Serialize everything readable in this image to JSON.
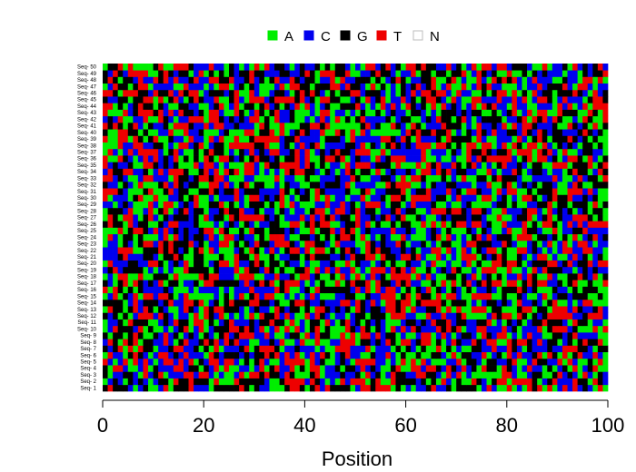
{
  "chart_data": {
    "type": "heatmap",
    "title": "",
    "xlabel": "Position",
    "ylabel": "",
    "xlim": [
      0,
      100
    ],
    "x_ticks": [
      "0",
      "20",
      "40",
      "60",
      "80",
      "100"
    ],
    "x_tick_values": [
      0,
      20,
      40,
      60,
      80,
      100
    ],
    "positions": 100,
    "sequences": [
      "Seq- 1",
      "Seq- 2",
      "Seq- 3",
      "Seq- 4",
      "Seq- 5",
      "Seq- 6",
      "Seq- 7",
      "Seq- 8",
      "Seq- 9",
      "Seq- 10",
      "Seq- 11",
      "Seq- 12",
      "Seq- 13",
      "Seq- 14",
      "Seq- 15",
      "Seq- 16",
      "Seq- 17",
      "Seq- 18",
      "Seq- 19",
      "Seq- 20",
      "Seq- 21",
      "Seq- 22",
      "Seq- 23",
      "Seq- 24",
      "Seq- 25",
      "Seq- 26",
      "Seq- 27",
      "Seq- 28",
      "Seq- 29",
      "Seq- 30",
      "Seq- 31",
      "Seq- 32",
      "Seq- 33",
      "Seq- 34",
      "Seq- 35",
      "Seq- 36",
      "Seq- 37",
      "Seq- 38",
      "Seq- 39",
      "Seq- 40",
      "Seq- 41",
      "Seq- 42",
      "Seq- 43",
      "Seq- 44",
      "Seq- 45",
      "Seq- 46",
      "Seq- 47",
      "Seq- 48",
      "Seq- 49",
      "Seq- 50"
    ],
    "legend": {
      "placement": "top-center",
      "entries": [
        {
          "label": "A",
          "color": "#00ee00"
        },
        {
          "label": "C",
          "color": "#0000ee"
        },
        {
          "label": "G",
          "color": "#000000"
        },
        {
          "label": "T",
          "color": "#ee0000"
        },
        {
          "label": "N",
          "color": "#ffffff"
        }
      ]
    },
    "grid": false,
    "seed": 20240611
  }
}
